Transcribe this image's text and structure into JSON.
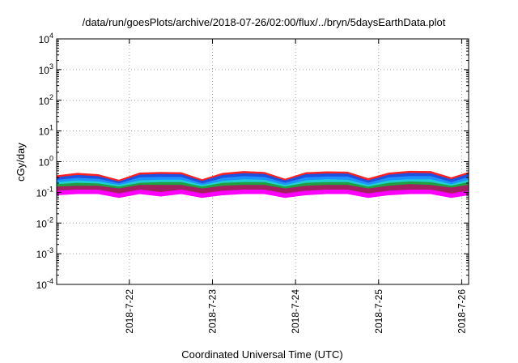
{
  "chart_data": {
    "type": "area",
    "title": "/data/run/goesPlots/archive/2018-07-26/02:00/flux/../bryn/5daysEarthData.plot",
    "xlabel": "Coordinated Universal Time (UTC)",
    "ylabel": "cGy/day",
    "yscale": "log",
    "ylim": [
      0.0001,
      10000
    ],
    "y_tick_exponents": [
      -4,
      -3,
      -2,
      -1,
      0,
      1,
      2,
      3,
      4
    ],
    "xlim": [
      "2018-07-21T03:00",
      "2018-07-26T02:00"
    ],
    "x_tick_labels": [
      "2018-7-22",
      "2018-7-23",
      "2018-7-24",
      "2018-7-25",
      "2018-7-26"
    ],
    "x_tick_dates": [
      "2018-07-22T00:00",
      "2018-07-23T00:00",
      "2018-07-24T00:00",
      "2018-07-25T00:00",
      "2018-07-26T00:00"
    ],
    "grid": true,
    "grid_style": "dotted",
    "x": [
      "2018-07-21T03:00",
      "2018-07-21T09:00",
      "2018-07-21T15:00",
      "2018-07-21T21:00",
      "2018-07-22T03:00",
      "2018-07-22T09:00",
      "2018-07-22T15:00",
      "2018-07-22T21:00",
      "2018-07-23T03:00",
      "2018-07-23T09:00",
      "2018-07-23T15:00",
      "2018-07-23T21:00",
      "2018-07-24T03:00",
      "2018-07-24T09:00",
      "2018-07-24T15:00",
      "2018-07-24T21:00",
      "2018-07-25T03:00",
      "2018-07-25T09:00",
      "2018-07-25T15:00",
      "2018-07-25T21:00",
      "2018-07-26T02:00"
    ],
    "series": [
      {
        "color": "#ff2020",
        "values": [
          0.35,
          0.42,
          0.38,
          0.25,
          0.43,
          0.45,
          0.44,
          0.26,
          0.42,
          0.48,
          0.45,
          0.27,
          0.44,
          0.47,
          0.46,
          0.28,
          0.43,
          0.49,
          0.48,
          0.3,
          0.45
        ]
      },
      {
        "color": "#2050e0",
        "values": [
          0.3,
          0.36,
          0.33,
          0.22,
          0.37,
          0.39,
          0.38,
          0.23,
          0.36,
          0.41,
          0.39,
          0.24,
          0.38,
          0.4,
          0.4,
          0.24,
          0.37,
          0.42,
          0.41,
          0.26,
          0.39
        ]
      },
      {
        "color": "#1e90ff",
        "values": [
          0.25,
          0.29,
          0.27,
          0.19,
          0.3,
          0.31,
          0.31,
          0.19,
          0.29,
          0.33,
          0.31,
          0.2,
          0.3,
          0.32,
          0.32,
          0.2,
          0.3,
          0.33,
          0.33,
          0.21,
          0.31
        ]
      },
      {
        "color": "#20d0d0",
        "values": [
          0.21,
          0.24,
          0.22,
          0.17,
          0.24,
          0.25,
          0.25,
          0.17,
          0.23,
          0.26,
          0.25,
          0.17,
          0.24,
          0.26,
          0.25,
          0.17,
          0.24,
          0.26,
          0.26,
          0.18,
          0.25
        ]
      },
      {
        "color": "#20a040",
        "values": [
          0.18,
          0.2,
          0.19,
          0.15,
          0.2,
          0.21,
          0.21,
          0.15,
          0.2,
          0.21,
          0.21,
          0.15,
          0.2,
          0.21,
          0.21,
          0.15,
          0.2,
          0.22,
          0.21,
          0.16,
          0.21
        ]
      },
      {
        "color": "#a02060",
        "values": [
          0.15,
          0.16,
          0.16,
          0.13,
          0.17,
          0.17,
          0.17,
          0.13,
          0.16,
          0.17,
          0.17,
          0.13,
          0.16,
          0.17,
          0.17,
          0.13,
          0.16,
          0.18,
          0.17,
          0.14,
          0.17
        ]
      },
      {
        "color": "#ff00ff",
        "values": [
          0.11,
          0.12,
          0.12,
          0.09,
          0.12,
          0.1,
          0.12,
          0.09,
          0.11,
          0.12,
          0.12,
          0.09,
          0.11,
          0.12,
          0.12,
          0.09,
          0.11,
          0.12,
          0.12,
          0.09,
          0.11
        ]
      }
    ]
  }
}
